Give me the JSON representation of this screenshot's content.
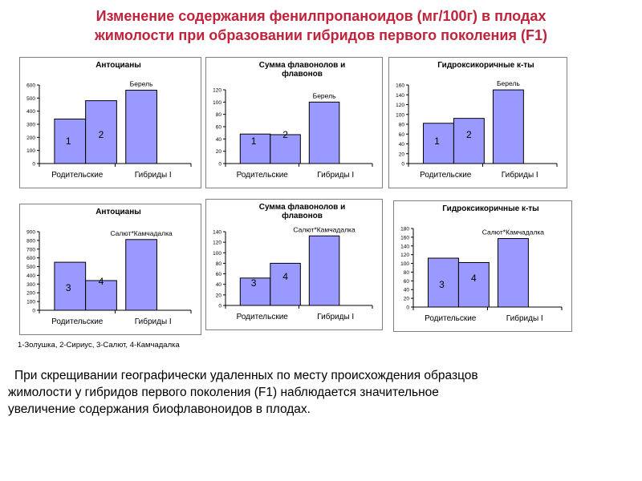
{
  "title_line1": "Изменение содержания фенилпропаноидов (мг/100г) в плодах",
  "title_line2": "жимолости при образовании гибридов первого поколения (F1)",
  "legend_note": "1-Золушка, 2-Сириус, 3-Салют, 4-Камчадалка",
  "conclusion_line1": "При скрещивании географически удаленных по месту происхождения образцов",
  "conclusion_line2": "жимолости у гибридов первого поколения (F1) наблюдается значительное",
  "conclusion_line3": "увеличение содержания биофлавоноидов в плодах.",
  "colors": {
    "title": "#c0233b",
    "bar_fill": "#9999ff",
    "bar_stroke": "#000000",
    "frame": "#808080"
  },
  "chart_data": [
    {
      "type": "bar",
      "title_lines": [
        "Антоцианы"
      ],
      "hybrid_label": "Берель",
      "categories": [
        "Родительские",
        "Гибриды I"
      ],
      "bars": [
        {
          "label": "1",
          "value": 340
        },
        {
          "label": "2",
          "value": 480
        },
        {
          "label": "",
          "value": 560
        }
      ],
      "ylim": [
        0,
        600
      ],
      "yticks": [
        0,
        100,
        200,
        300,
        400,
        500,
        600
      ]
    },
    {
      "type": "bar",
      "title_lines": [
        "Сумма флавонолов и",
        "флавонов"
      ],
      "hybrid_label": "Берель",
      "categories": [
        "Родительские",
        "Гибриды I"
      ],
      "bars": [
        {
          "label": "1",
          "value": 48
        },
        {
          "label": "2",
          "value": 47
        },
        {
          "label": "",
          "value": 100
        }
      ],
      "ylim": [
        0,
        120
      ],
      "yticks": [
        0,
        20,
        40,
        60,
        80,
        100,
        120
      ]
    },
    {
      "type": "bar",
      "title_lines": [
        "Гидроксикоричные к-ты"
      ],
      "hybrid_label": "Берель",
      "categories": [
        "Родительские",
        "Гибриды I"
      ],
      "bars": [
        {
          "label": "1",
          "value": 82
        },
        {
          "label": "2",
          "value": 92
        },
        {
          "label": "",
          "value": 150
        }
      ],
      "ylim": [
        0,
        160
      ],
      "yticks": [
        0,
        20,
        40,
        60,
        80,
        100,
        120,
        140,
        160
      ]
    },
    {
      "type": "bar",
      "title_lines": [
        "Антоцианы"
      ],
      "hybrid_label": "Салют*Камчадалка",
      "categories": [
        "Родительские",
        "Гибриды I"
      ],
      "bars": [
        {
          "label": "3",
          "value": 550
        },
        {
          "label": "4",
          "value": 340
        },
        {
          "label": "",
          "value": 810
        }
      ],
      "ylim": [
        0,
        900
      ],
      "yticks": [
        0,
        100,
        200,
        300,
        400,
        500,
        600,
        700,
        800,
        900
      ]
    },
    {
      "type": "bar",
      "title_lines": [
        "Сумма флавонолов и",
        "флавонов"
      ],
      "hybrid_label": "Салют*Камчадалка",
      "categories": [
        "Родительские",
        "Гибриды I"
      ],
      "bars": [
        {
          "label": "3",
          "value": 52
        },
        {
          "label": "4",
          "value": 80
        },
        {
          "label": "",
          "value": 132
        }
      ],
      "ylim": [
        0,
        140
      ],
      "yticks": [
        0,
        20,
        40,
        60,
        80,
        100,
        120,
        140
      ]
    },
    {
      "type": "bar",
      "title_lines": [
        "Гидроксикоричные к-ты"
      ],
      "hybrid_label": "Салют*Камчадалка",
      "categories": [
        "Родительские",
        "Гибриды I"
      ],
      "bars": [
        {
          "label": "3",
          "value": 112
        },
        {
          "label": "4",
          "value": 102
        },
        {
          "label": "",
          "value": 157
        }
      ],
      "ylim": [
        0,
        180
      ],
      "yticks": [
        0,
        20,
        40,
        60,
        80,
        100,
        120,
        140,
        160,
        180
      ]
    }
  ]
}
